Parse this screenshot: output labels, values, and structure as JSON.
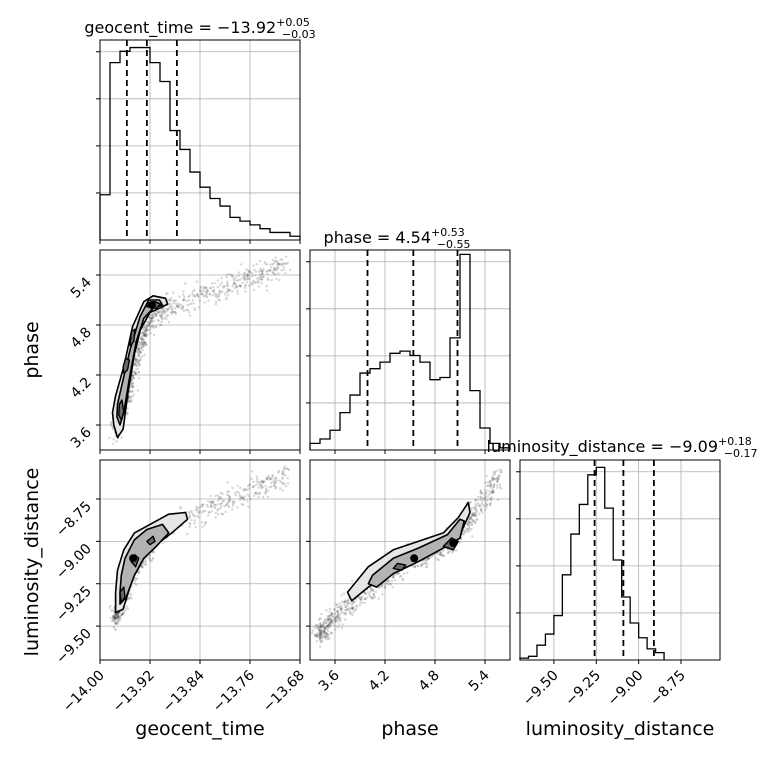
{
  "chart_data": {
    "type": "corner",
    "parameters": [
      {
        "name": "geocent_time",
        "axis_label": "geocent_time",
        "lim": [
          -14.0,
          -13.68
        ],
        "ticks": [
          -14.0,
          -13.92,
          -13.84,
          -13.76,
          -13.68
        ],
        "tick_labels": [
          "−14.00",
          "−13.92",
          "−13.84",
          "−13.76",
          "−13.68"
        ],
        "title": {
          "prefix": "geocent_time = −13.92",
          "upper": "+0.05",
          "lower": "−0.03"
        },
        "quantiles": [
          -13.957,
          -13.925,
          -13.877
        ],
        "hist": {
          "edges_start": -14.0,
          "bin_width": 0.016,
          "counts": [
            12,
            47,
            50,
            51,
            51,
            47,
            42,
            29,
            24,
            18,
            14,
            11,
            9,
            6,
            5,
            4,
            3,
            2,
            2,
            1
          ],
          "y_max": 53
        }
      },
      {
        "name": "phase",
        "axis_label": "phase",
        "lim": [
          3.3,
          5.7
        ],
        "ticks": [
          3.6,
          4.2,
          4.8,
          5.4
        ],
        "tick_labels": [
          "3.6",
          "4.2",
          "4.8",
          "5.4"
        ],
        "title": {
          "prefix": "phase = 4.54",
          "upper": "+0.53",
          "lower": "−0.55"
        },
        "quantiles": [
          3.99,
          4.54,
          5.07
        ],
        "hist": {
          "edges_start": 3.3,
          "bin_width": 0.12,
          "counts": [
            3,
            5,
            9,
            17,
            25,
            35,
            37,
            40,
            44,
            45,
            43,
            40,
            32,
            33,
            51,
            89,
            27,
            10,
            3,
            1
          ],
          "y_max": 91
        }
      },
      {
        "name": "luminosity_distance",
        "axis_label": "luminosity_distance",
        "lim": [
          -9.7,
          -8.52
        ],
        "ticks": [
          -9.5,
          -9.25,
          -9.0,
          -8.75
        ],
        "tick_labels": [
          "−9.50",
          "−9.25",
          "−9.00",
          "−8.75"
        ],
        "title": {
          "prefix": "luminosity_distance = −9.09",
          "upper": "+0.18",
          "lower": "−0.17"
        },
        "quantiles": [
          -9.26,
          -9.09,
          -8.91
        ],
        "hist": {
          "edges_start": -9.7,
          "bin_width": 0.05,
          "counts": [
            0.5,
            1,
            4,
            7,
            12,
            23,
            34,
            42,
            50,
            52,
            41,
            27,
            17,
            10,
            6,
            3,
            2
          ],
          "y_max": 54
        }
      }
    ],
    "y_ticks_2d": {
      "phase": {
        "ticks": [
          3.6,
          4.2,
          4.8,
          5.4
        ],
        "tick_labels": [
          "3.6",
          "4.2",
          "4.8",
          "5.4"
        ]
      },
      "luminosity_distance": {
        "ticks": [
          -9.5,
          -9.25,
          -9.0,
          -8.75
        ],
        "tick_labels": [
          "−9.50",
          "−9.25",
          "−9.00",
          "−8.75"
        ]
      }
    },
    "hist_y_ticks": 4,
    "grid": true,
    "sample_trends": [
      {
        "x_param": "geocent_time",
        "y_param": "phase",
        "x": [
          -13.975,
          -13.965,
          -13.955,
          -13.945,
          -13.935,
          -13.925,
          -13.915,
          -13.9,
          -13.88,
          -13.85,
          -13.82,
          -13.79,
          -13.76,
          -13.73,
          -13.7
        ],
        "y": [
          3.55,
          3.75,
          4.0,
          4.3,
          4.55,
          4.75,
          4.9,
          5.0,
          5.05,
          5.12,
          5.2,
          5.28,
          5.36,
          5.45,
          5.55
        ]
      },
      {
        "x_param": "geocent_time",
        "y_param": "luminosity_distance",
        "x": [
          -13.975,
          -13.965,
          -13.955,
          -13.945,
          -13.935,
          -13.925,
          -13.915,
          -13.9,
          -13.88,
          -13.85,
          -13.82,
          -13.79,
          -13.76,
          -13.73,
          -13.7
        ],
        "y": [
          -9.45,
          -9.35,
          -9.25,
          -9.17,
          -9.1,
          -9.05,
          -9.0,
          -8.95,
          -8.9,
          -8.85,
          -8.8,
          -8.75,
          -8.7,
          -8.65,
          -8.6
        ]
      },
      {
        "x_param": "phase",
        "y_param": "luminosity_distance",
        "x": [
          3.4,
          3.7,
          4.0,
          4.3,
          4.6,
          4.8,
          5.0,
          5.15,
          5.3,
          5.45,
          5.6
        ],
        "y": [
          -9.55,
          -9.4,
          -9.28,
          -9.18,
          -9.1,
          -9.05,
          -9.0,
          -8.92,
          -8.82,
          -8.7,
          -8.6
        ]
      }
    ],
    "contours": [
      {
        "x_param": "geocent_time",
        "y_param": "phase",
        "levels": [
          [
            [
              -13.978,
              3.6
            ],
            [
              -13.972,
              3.45
            ],
            [
              -13.963,
              3.55
            ],
            [
              -13.955,
              4.0
            ],
            [
              -13.945,
              4.45
            ],
            [
              -13.935,
              4.75
            ],
            [
              -13.92,
              4.95
            ],
            [
              -13.9,
              5.02
            ],
            [
              -13.892,
              5.05
            ],
            [
              -13.895,
              5.12
            ],
            [
              -13.915,
              5.15
            ],
            [
              -13.93,
              5.08
            ],
            [
              -13.948,
              4.78
            ],
            [
              -13.962,
              4.3
            ],
            [
              -13.975,
              3.95
            ],
            [
              -13.98,
              3.75
            ]
          ],
          [
            [
              -13.973,
              3.7
            ],
            [
              -13.968,
              3.6
            ],
            [
              -13.962,
              3.75
            ],
            [
              -13.952,
              4.2
            ],
            [
              -13.942,
              4.6
            ],
            [
              -13.93,
              4.88
            ],
            [
              -13.915,
              5.0
            ],
            [
              -13.9,
              5.04
            ],
            [
              -13.905,
              5.1
            ],
            [
              -13.922,
              5.1
            ],
            [
              -13.936,
              4.9
            ],
            [
              -13.952,
              4.5
            ],
            [
              -13.966,
              4.05
            ],
            [
              -13.972,
              3.85
            ]
          ],
          [
            [
              -13.97,
              3.72
            ],
            [
              -13.966,
              3.66
            ],
            [
              -13.962,
              3.76
            ],
            [
              -13.965,
              3.9
            ],
            [
              -13.969,
              3.85
            ]
          ],
          [
            [
              -13.962,
              4.22
            ],
            [
              -13.956,
              4.26
            ],
            [
              -13.953,
              4.38
            ],
            [
              -13.959,
              4.4
            ],
            [
              -13.963,
              4.3
            ]
          ],
          [
            [
              -13.952,
              4.55
            ],
            [
              -13.946,
              4.6
            ],
            [
              -13.944,
              4.75
            ],
            [
              -13.95,
              4.72
            ]
          ],
          [
            [
              -13.925,
              5.02
            ],
            [
              -13.91,
              5.0
            ],
            [
              -13.903,
              5.05
            ],
            [
              -13.912,
              5.08
            ],
            [
              -13.925,
              5.06
            ]
          ]
        ],
        "modes": [
          [
            -13.917,
            5.04
          ]
        ]
      },
      {
        "x_param": "geocent_time",
        "y_param": "luminosity_distance",
        "levels": [
          [
            [
              -13.975,
              -9.3
            ],
            [
              -13.975,
              -9.42
            ],
            [
              -13.963,
              -9.4
            ],
            [
              -13.948,
              -9.22
            ],
            [
              -13.93,
              -9.1
            ],
            [
              -13.91,
              -9.02
            ],
            [
              -13.885,
              -8.95
            ],
            [
              -13.86,
              -8.87
            ],
            [
              -13.863,
              -8.83
            ],
            [
              -13.89,
              -8.84
            ],
            [
              -13.92,
              -8.9
            ],
            [
              -13.945,
              -8.95
            ],
            [
              -13.962,
              -9.05
            ],
            [
              -13.972,
              -9.17
            ]
          ],
          [
            [
              -13.968,
              -9.3
            ],
            [
              -13.968,
              -9.37
            ],
            [
              -13.958,
              -9.33
            ],
            [
              -13.945,
              -9.2
            ],
            [
              -13.93,
              -9.1
            ],
            [
              -13.91,
              -9.03
            ],
            [
              -13.89,
              -8.95
            ],
            [
              -13.9,
              -8.9
            ],
            [
              -13.925,
              -8.93
            ],
            [
              -13.945,
              -8.99
            ],
            [
              -13.96,
              -9.1
            ],
            [
              -13.966,
              -9.2
            ]
          ],
          [
            [
              -13.95,
              -9.12
            ],
            [
              -13.944,
              -9.08
            ],
            [
              -13.938,
              -9.1
            ],
            [
              -13.943,
              -9.15
            ]
          ],
          [
            [
              -13.968,
              -9.3
            ],
            [
              -13.962,
              -9.27
            ],
            [
              -13.96,
              -9.33
            ],
            [
              -13.966,
              -9.36
            ]
          ],
          [
            [
              -13.925,
              -9.0
            ],
            [
              -13.915,
              -8.97
            ],
            [
              -13.912,
              -9.0
            ],
            [
              -13.92,
              -9.02
            ]
          ]
        ],
        "modes": [
          [
            -13.947,
            -9.1
          ]
        ]
      },
      {
        "x_param": "phase",
        "y_param": "luminosity_distance",
        "levels": [
          [
            [
              3.75,
              -9.3
            ],
            [
              3.8,
              -9.35
            ],
            [
              4.0,
              -9.27
            ],
            [
              4.3,
              -9.18
            ],
            [
              4.6,
              -9.1
            ],
            [
              4.9,
              -9.02
            ],
            [
              5.1,
              -8.96
            ],
            [
              5.22,
              -8.83
            ],
            [
              5.2,
              -8.77
            ],
            [
              5.08,
              -8.86
            ],
            [
              4.9,
              -8.95
            ],
            [
              4.6,
              -9.0
            ],
            [
              4.3,
              -9.05
            ],
            [
              4.0,
              -9.15
            ]
          ],
          [
            [
              4.0,
              -9.25
            ],
            [
              4.1,
              -9.27
            ],
            [
              4.3,
              -9.19
            ],
            [
              4.6,
              -9.12
            ],
            [
              4.9,
              -9.04
            ],
            [
              5.1,
              -8.98
            ],
            [
              5.15,
              -8.88
            ],
            [
              5.1,
              -8.87
            ],
            [
              4.95,
              -8.96
            ],
            [
              4.6,
              -9.04
            ],
            [
              4.3,
              -9.1
            ],
            [
              4.05,
              -9.2
            ]
          ],
          [
            [
              4.3,
              -9.16
            ],
            [
              4.4,
              -9.17
            ],
            [
              4.45,
              -9.14
            ],
            [
              4.35,
              -9.13
            ]
          ],
          [
            [
              4.9,
              -9.03
            ],
            [
              5.02,
              -9.05
            ],
            [
              5.08,
              -9.0
            ],
            [
              5.0,
              -8.98
            ]
          ]
        ],
        "modes": [
          [
            5.02,
            -9.01
          ],
          [
            4.55,
            -9.1
          ]
        ]
      }
    ]
  }
}
